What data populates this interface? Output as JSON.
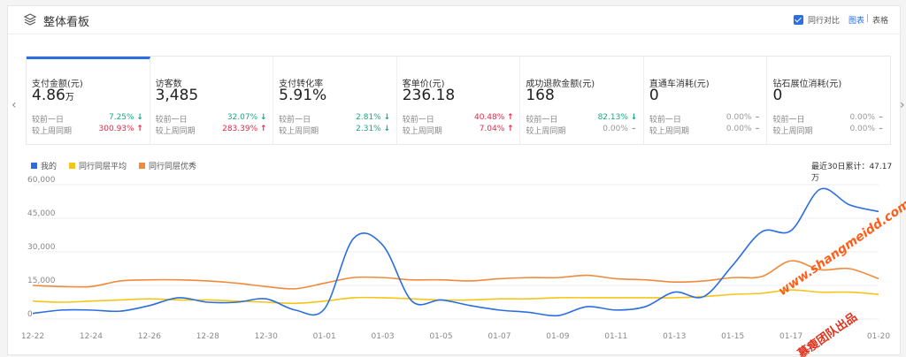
{
  "header": {
    "title": "整体看板",
    "compare_label": "同行对比",
    "view_chart": "图表",
    "view_sep": "|",
    "view_table": "表格"
  },
  "nav": {
    "prev": "‹",
    "next": "›"
  },
  "cards": [
    {
      "title": "支付金额(元)",
      "value": "4.86",
      "unit": "万",
      "cmp1_label": "较前一日",
      "cmp1": "7.25%",
      "cmp1_dir": "down",
      "cmp2_label": "较上周同期",
      "cmp2": "300.93%",
      "cmp2_dir": "up"
    },
    {
      "title": "访客数",
      "value": "3,485",
      "unit": "",
      "cmp1_label": "较前一日",
      "cmp1": "32.07%",
      "cmp1_dir": "down",
      "cmp2_label": "较上周同期",
      "cmp2": "283.39%",
      "cmp2_dir": "up"
    },
    {
      "title": "支付转化率",
      "value": "5.91%",
      "unit": "",
      "cmp1_label": "较前一日",
      "cmp1": "2.81%",
      "cmp1_dir": "down",
      "cmp2_label": "较上周同期",
      "cmp2": "2.31%",
      "cmp2_dir": "down"
    },
    {
      "title": "客单价(元)",
      "value": "236.18",
      "unit": "",
      "cmp1_label": "较前一日",
      "cmp1": "40.48%",
      "cmp1_dir": "up",
      "cmp2_label": "较上周同期",
      "cmp2": "7.04%",
      "cmp2_dir": "up"
    },
    {
      "title": "成功退款金额(元)",
      "value": "168",
      "unit": "",
      "cmp1_label": "较前一日",
      "cmp1": "82.13%",
      "cmp1_dir": "down",
      "cmp2_label": "较上周同期",
      "cmp2": "0.00%",
      "cmp2_dir": "flat"
    },
    {
      "title": "直通车消耗(元)",
      "value": "0",
      "unit": "",
      "cmp1_label": "较前一日",
      "cmp1": "0.00%",
      "cmp1_dir": "flat",
      "cmp2_label": "较上周同期",
      "cmp2": "0.00%",
      "cmp2_dir": "flat"
    },
    {
      "title": "钻石展位消耗(元)",
      "value": "0",
      "unit": "",
      "cmp1_label": "较前一日",
      "cmp1": "0.00%",
      "cmp1_dir": "flat",
      "cmp2_label": "较上周同期",
      "cmp2": "0.00%",
      "cmp2_dir": "flat"
    }
  ],
  "colors": {
    "accent": "#2b6ee0",
    "up": "#e02a4a",
    "down": "#18a884",
    "mine": "#2b6ee0",
    "avg": "#f5c518",
    "top": "#f08a3c"
  },
  "chart_summary": "最近30日累计：47.17万",
  "watermark": {
    "line1": "www.shangmeidd.com",
    "line2": "慕瘦团队出品"
  },
  "chart_data": {
    "type": "line",
    "x": [
      "12-22",
      "12-23",
      "12-24",
      "12-25",
      "12-26",
      "12-27",
      "12-28",
      "12-29",
      "12-30",
      "12-31",
      "01-01",
      "01-02",
      "01-03",
      "01-04",
      "01-05",
      "01-06",
      "01-07",
      "01-08",
      "01-09",
      "01-10",
      "01-11",
      "01-12",
      "01-13",
      "01-14",
      "01-15",
      "01-16",
      "01-17",
      "01-18",
      "01-19",
      "01-20"
    ],
    "xticks": [
      "12-22",
      "12-24",
      "12-26",
      "12-28",
      "12-30",
      "01-01",
      "01-03",
      "01-05",
      "01-07",
      "01-09",
      "01-11",
      "01-13",
      "01-15",
      "01-17",
      "01-20"
    ],
    "ylim": [
      0,
      60000
    ],
    "yticks": [
      "0",
      "15,000",
      "30,000",
      "45,000",
      "60,000"
    ],
    "legend": "top-left",
    "grid": true,
    "series": [
      {
        "name": "我的",
        "color": "#2b6ee0",
        "values": [
          2500,
          4000,
          4000,
          3500,
          6000,
          9500,
          7500,
          7500,
          9000,
          4000,
          4500,
          36000,
          33000,
          8000,
          8500,
          6000,
          4000,
          3000,
          1500,
          5500,
          4000,
          5500,
          12000,
          10000,
          24000,
          39000,
          39500,
          58000,
          51000,
          48000
        ]
      },
      {
        "name": "同行同层平均",
        "color": "#f5c518",
        "values": [
          8000,
          7500,
          8000,
          8500,
          9000,
          8500,
          8500,
          8000,
          7500,
          7000,
          8000,
          9500,
          9500,
          9000,
          8500,
          8500,
          9000,
          9000,
          9500,
          9500,
          9500,
          9500,
          9500,
          10000,
          11000,
          11500,
          13000,
          12000,
          12000,
          11000
        ]
      },
      {
        "name": "同行同层优秀",
        "color": "#f08a3c",
        "values": [
          15000,
          14500,
          14500,
          17000,
          17500,
          17500,
          17000,
          16000,
          14500,
          13500,
          16000,
          18500,
          18500,
          17500,
          17500,
          17000,
          18000,
          18500,
          18500,
          19500,
          18000,
          17500,
          16500,
          17000,
          18500,
          19000,
          26000,
          22000,
          22500,
          18000
        ]
      }
    ]
  }
}
